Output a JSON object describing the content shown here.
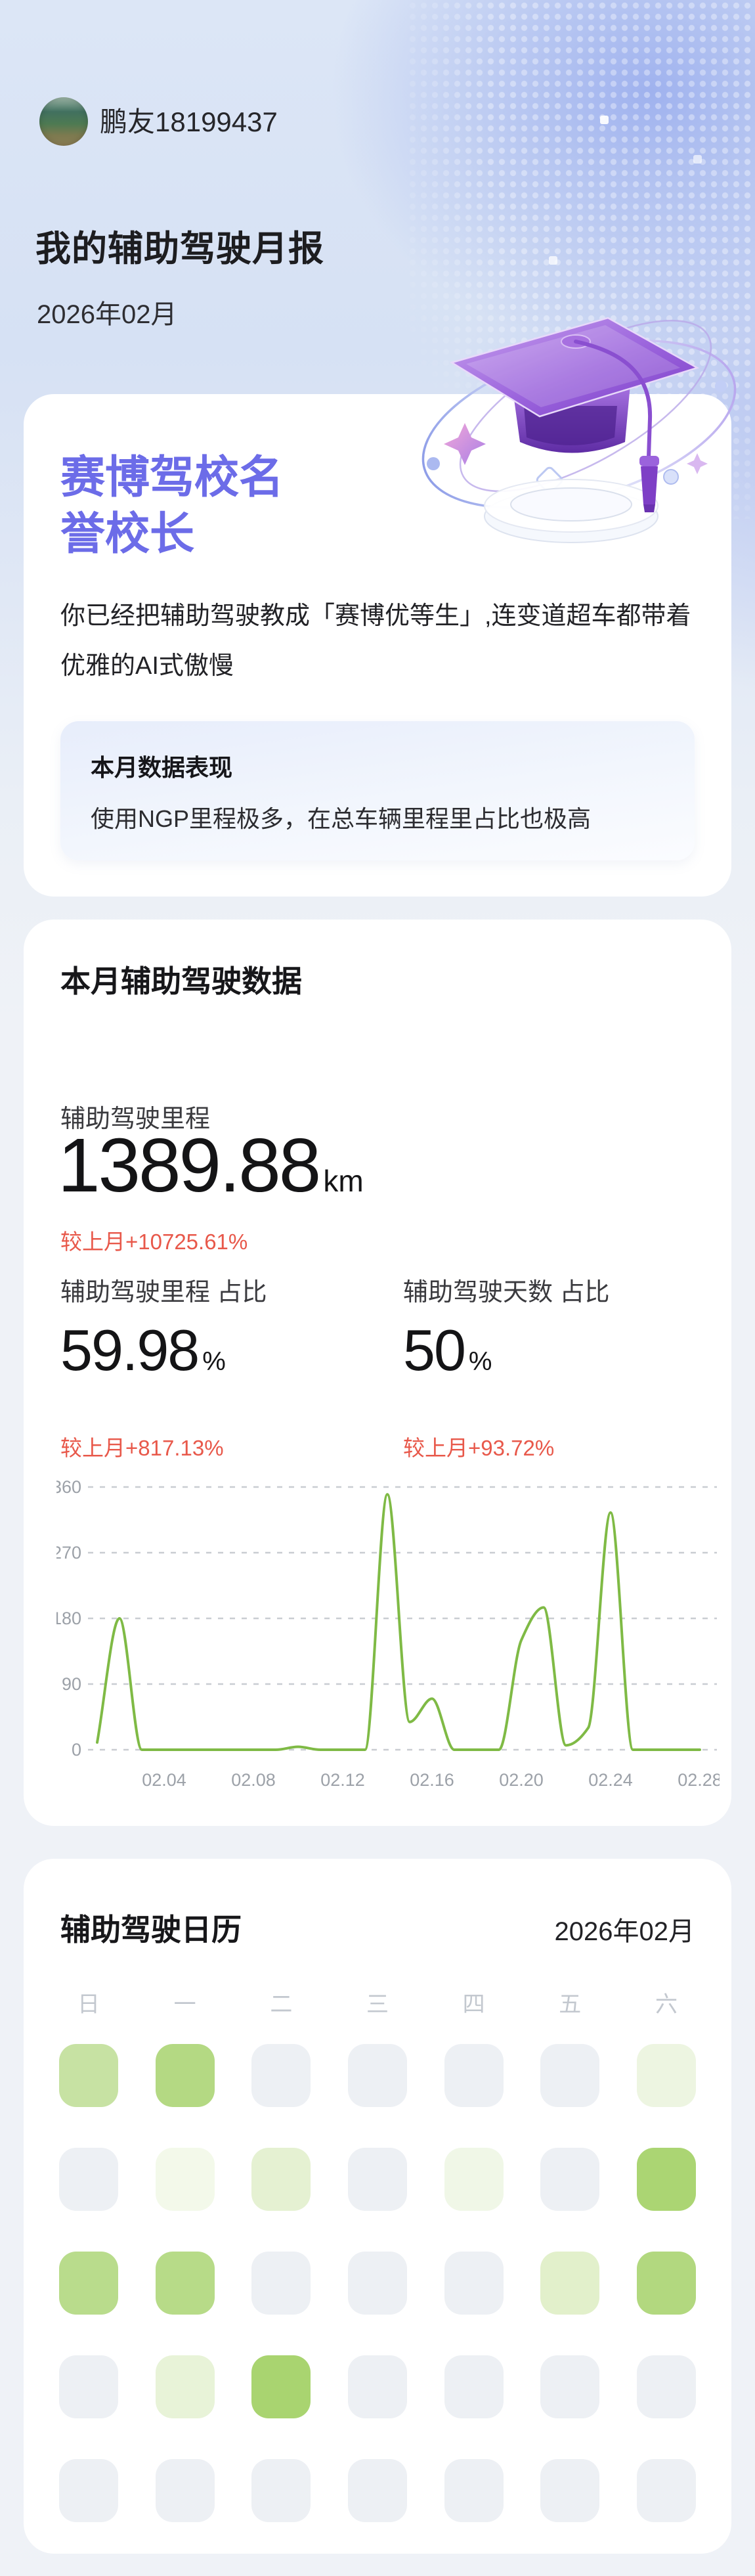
{
  "header": {
    "username": "鹏友18199437",
    "report_title": "我的辅助驾驶月报",
    "report_date": "2026年02月"
  },
  "hero": {
    "title_lines": {
      "0": "赛博驾校名",
      "1": "誉校长"
    },
    "body": "你已经把辅助驾驶教成「赛博优等生」,连变道超车都带着优雅的AI式傲慢",
    "summary_title": "本月数据表现",
    "summary_text": "使用NGP里程极多，在总车辆里程里占比也极高"
  },
  "stats": {
    "section_title": "本月辅助驾驶数据",
    "mileage": {
      "label": "辅助驾驶里程",
      "value": "1389.88",
      "unit": "km",
      "delta": "较上月+10725.61%"
    },
    "mileage_ratio": {
      "label": "辅助驾驶里程 占比",
      "value": "59.98",
      "unit": "%",
      "delta": "较上月+817.13%"
    },
    "days_ratio": {
      "label": "辅助驾驶天数 占比",
      "value": "50",
      "unit": "%",
      "delta": "较上月+93.72%"
    }
  },
  "chart_data": {
    "type": "line",
    "title": "",
    "xlabel": "",
    "ylabel": "",
    "x_days": [
      1,
      2,
      3,
      4,
      5,
      6,
      7,
      8,
      9,
      10,
      11,
      12,
      13,
      14,
      15,
      16,
      17,
      18,
      19,
      20,
      21,
      22,
      23,
      24,
      25,
      26,
      27,
      28
    ],
    "values": [
      10,
      180,
      0,
      0,
      0,
      0,
      0,
      0,
      0,
      4,
      0,
      0,
      0,
      350,
      38,
      70,
      0,
      0,
      0,
      150,
      195,
      6,
      30,
      325,
      0,
      0,
      0,
      0
    ],
    "x_tick_labels": [
      "02.04",
      "02.08",
      "02.12",
      "02.16",
      "02.20",
      "02.24",
      "02.28"
    ],
    "x_tick_days": [
      4,
      8,
      12,
      16,
      20,
      24,
      28
    ],
    "yticks": [
      0,
      90,
      180,
      270,
      360
    ],
    "ylim": [
      0,
      360
    ],
    "grid": "horizontal-dashed",
    "legend": "none",
    "line_color": "#7FBA45",
    "grid_color": "#C9CDD2",
    "axis_label_color": "#9CA1A8"
  },
  "calendar": {
    "title": "辅助驾驶日历",
    "month": "2026年02月",
    "weekdays": [
      "日",
      "一",
      "二",
      "三",
      "四",
      "五",
      "六"
    ],
    "cell_colors": [
      "#C7E2A3",
      "#B4D983",
      "#EDF0F4",
      "#EDF0F4",
      "#EDF0F4",
      "#EDF0F4",
      "#EDF5E1",
      "#EDF0F4",
      "#F3F9EA",
      "#E5F1D2",
      "#EDF0F4",
      "#F0F7E7",
      "#EDF0F4",
      "#ABD573",
      "#B9DC8C",
      "#B7DB88",
      "#EDF0F4",
      "#EDF0F4",
      "#EDF0F4",
      "#E2F0CB",
      "#B2D87F",
      "#EDF0F4",
      "#E8F3D8",
      "#A9D470",
      "#EDF0F4",
      "#EDF0F4",
      "#EDF0F4",
      "#EDF0F4",
      "#EDF0F4",
      "#EDF0F4",
      "#EDF0F4",
      "#EDF0F4",
      "#EDF0F4",
      "#EDF0F4",
      "#EDF0F4"
    ]
  },
  "colors": {
    "accent_purple": "#6C6CE8",
    "delta_red": "#E8584A",
    "chart_green": "#7FBA45",
    "page_bg": "#EFF2F7",
    "header_periwinkle": "#9CAFEE"
  }
}
